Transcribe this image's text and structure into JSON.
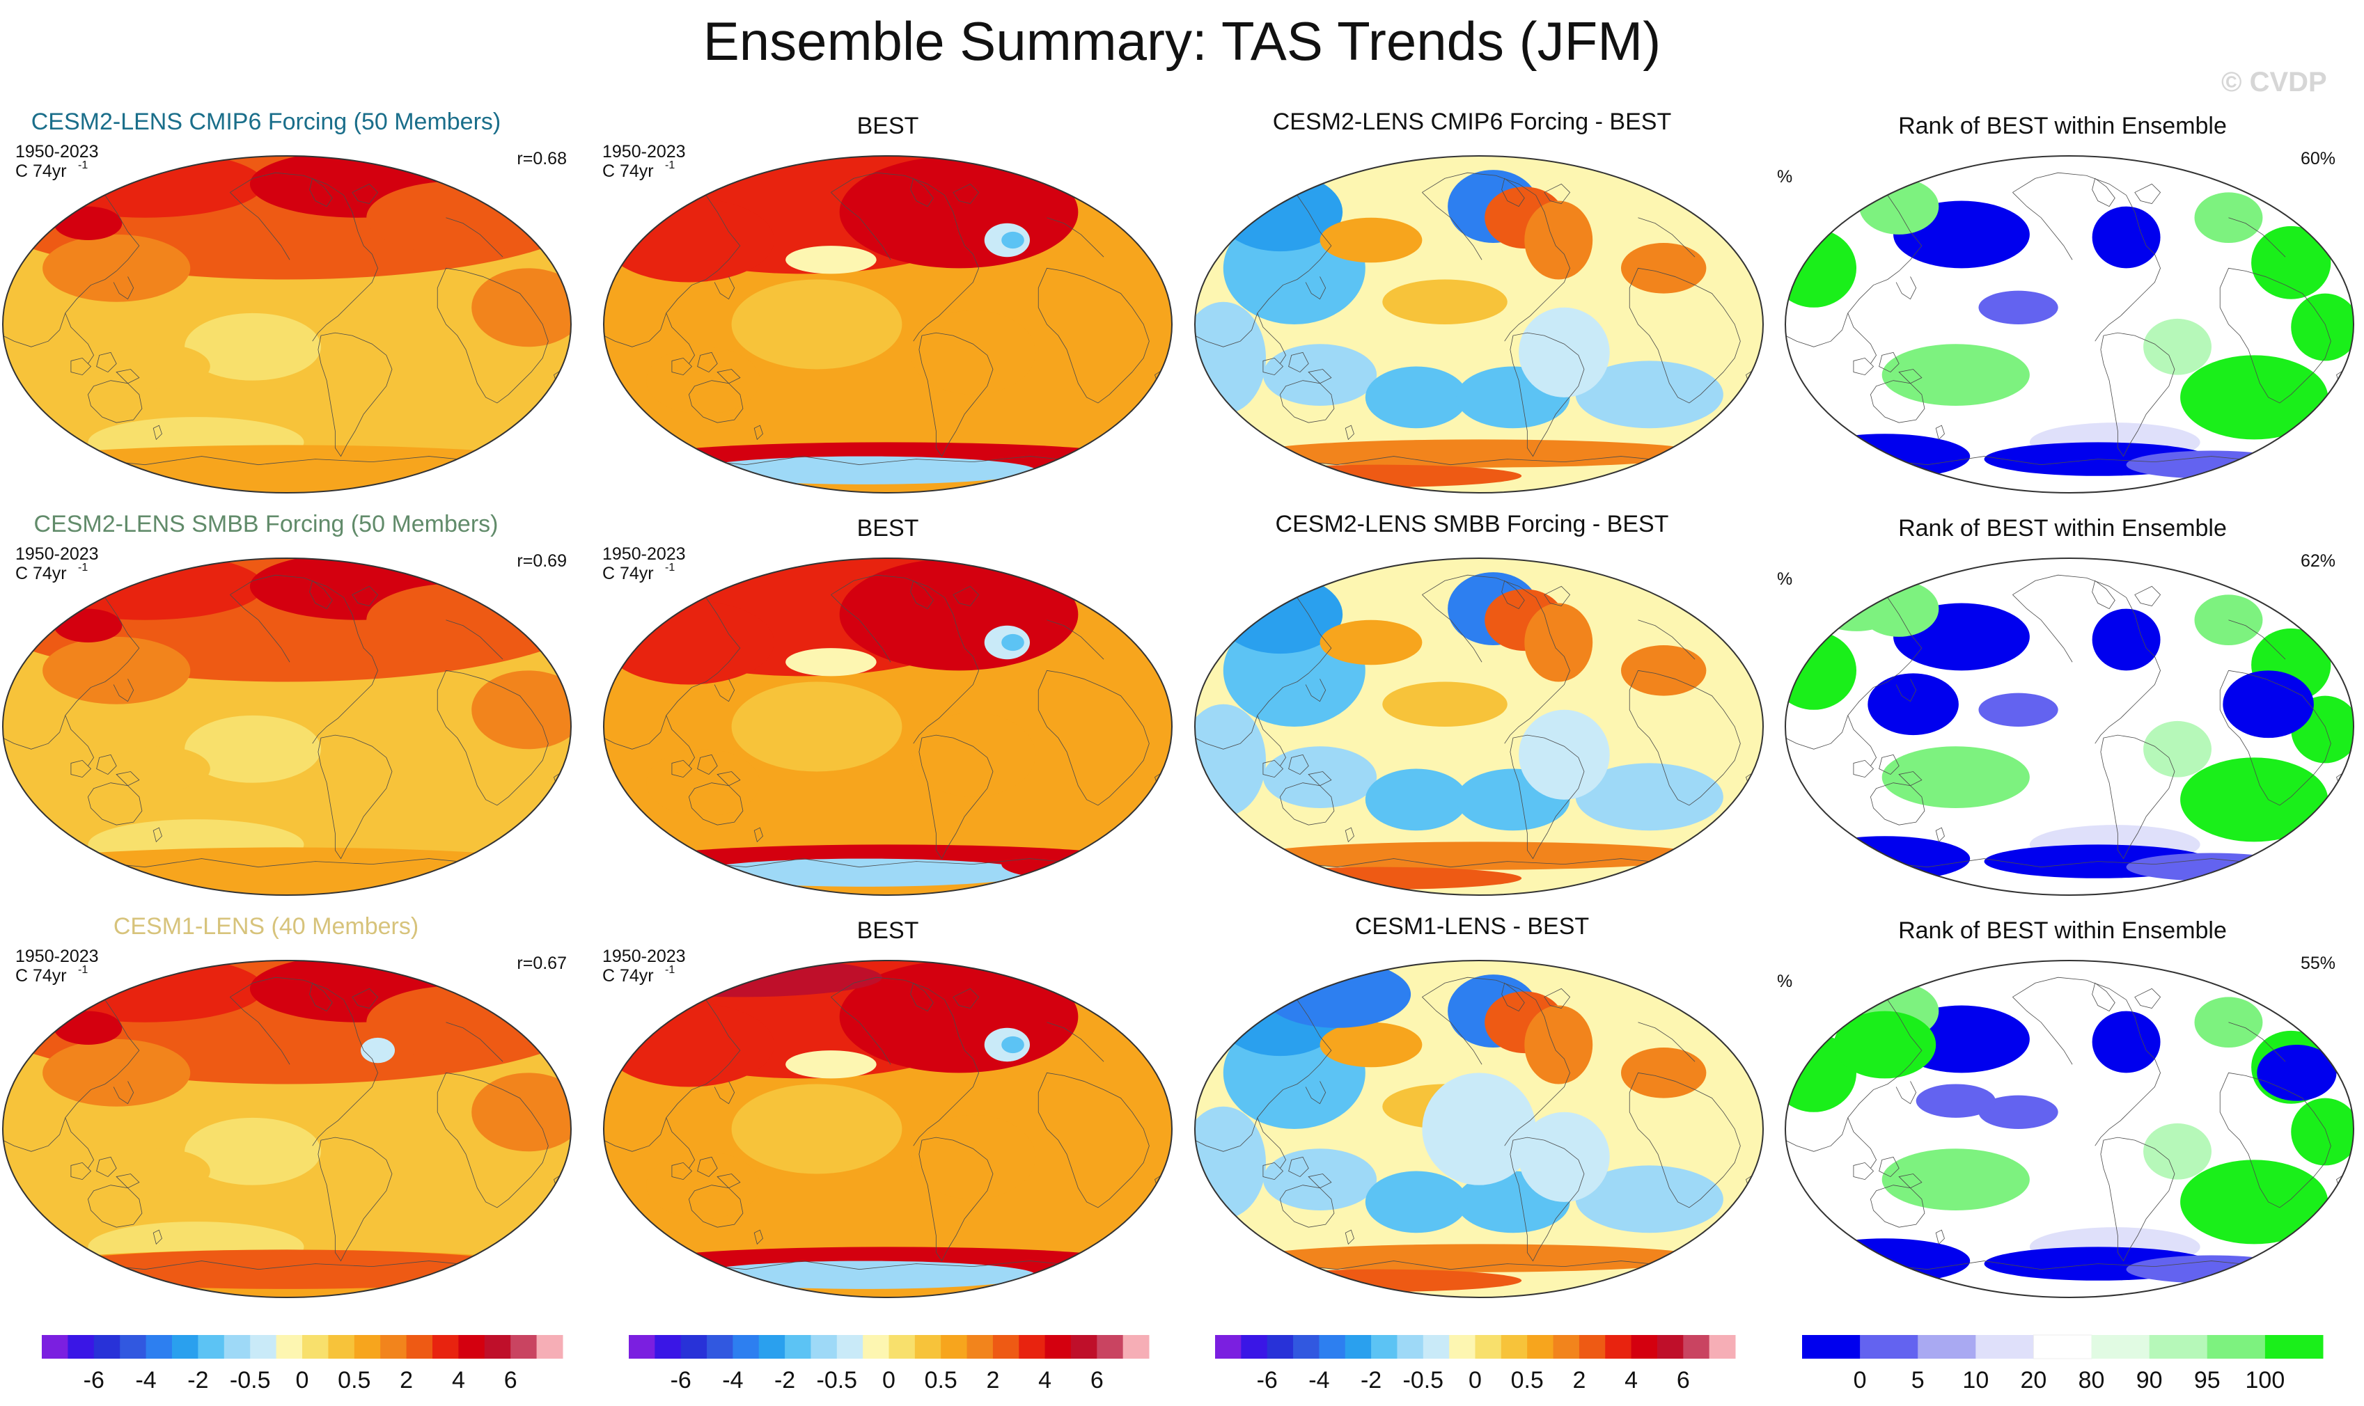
{
  "title": "Ensemble Summary: TAS Trends (JFM)",
  "watermark": "© CVDP",
  "colors": {
    "trend_levels": [
      "#7b1fe0",
      "#3a16e6",
      "#2832d8",
      "#3158e0",
      "#2d7ff0",
      "#2aa0ee",
      "#5cc3f4",
      "#9ed9f7",
      "#c9eaf8",
      "#fdf6b1",
      "#f8e06c",
      "#f7c33a",
      "#f7a51d",
      "#f2841c",
      "#ee5a14",
      "#e8230f",
      "#d4000f",
      "#bf0f2a",
      "#c94461",
      "#f6aeb6"
    ],
    "rank_levels": [
      "#0000ee",
      "#6363f0",
      "#a9a9f2",
      "#dfe0fa",
      "#ffffff",
      "#e1fbe3",
      "#b6f8b9",
      "#7df27f",
      "#1aef1a"
    ],
    "row_titles": [
      "#1a6e8a",
      "#618b6a",
      "#d7c37b"
    ],
    "continents": "#4a4a4a"
  },
  "rows": [
    {
      "model": {
        "title": "CESM2-LENS CMIP6 Forcing (50 Members)",
        "period": "1950-2023",
        "units": "C 74yr",
        "units_sup": "-1",
        "r": "r=0.68"
      },
      "obs": {
        "title": "BEST",
        "period": "1950-2023",
        "units": "C 74yr",
        "units_sup": "-1"
      },
      "diff": {
        "title": "CESM2-LENS CMIP6 Forcing - BEST"
      },
      "rank": {
        "title": "Rank of BEST within Ensemble",
        "unit": "%",
        "pct": "60%"
      }
    },
    {
      "model": {
        "title": "CESM2-LENS SMBB Forcing (50 Members)",
        "period": "1950-2023",
        "units": "C 74yr",
        "units_sup": "-1",
        "r": "r=0.69"
      },
      "obs": {
        "title": "BEST",
        "period": "1950-2023",
        "units": "C 74yr",
        "units_sup": "-1"
      },
      "diff": {
        "title": "CESM2-LENS SMBB Forcing - BEST"
      },
      "rank": {
        "title": "Rank of BEST within Ensemble",
        "unit": "%",
        "pct": "62%"
      }
    },
    {
      "model": {
        "title": "CESM1-LENS (40 Members)",
        "period": "1950-2023",
        "units": "C 74yr",
        "units_sup": "-1",
        "r": "r=0.67"
      },
      "obs": {
        "title": "BEST",
        "period": "1950-2023",
        "units": "C 74yr",
        "units_sup": "-1"
      },
      "diff": {
        "title": "CESM1-LENS - BEST"
      },
      "rank": {
        "title": "Rank of BEST within Ensemble",
        "unit": "%",
        "pct": "55%"
      }
    }
  ],
  "chart_data": {
    "type": "heatmap",
    "projection": "robinson",
    "variable": "TAS trends",
    "season": "JFM",
    "panel_columns": [
      "model ensemble mean",
      "BEST",
      "model - BEST",
      "rank of BEST within ensemble"
    ],
    "colorbars": [
      {
        "labels": [
          "-6",
          "-4",
          "-2",
          "-0.5",
          "0",
          "0.5",
          "2",
          "4",
          "6"
        ]
      },
      {
        "labels": [
          "-6",
          "-4",
          "-2",
          "-0.5",
          "0",
          "0.5",
          "2",
          "4",
          "6"
        ]
      },
      {
        "labels": [
          "-6",
          "-4",
          "-2",
          "-0.5",
          "0",
          "0.5",
          "2",
          "4",
          "6"
        ]
      },
      {
        "labels": [
          "0",
          "5",
          "10",
          "20",
          "80",
          "90",
          "95",
          "100"
        ]
      }
    ]
  }
}
